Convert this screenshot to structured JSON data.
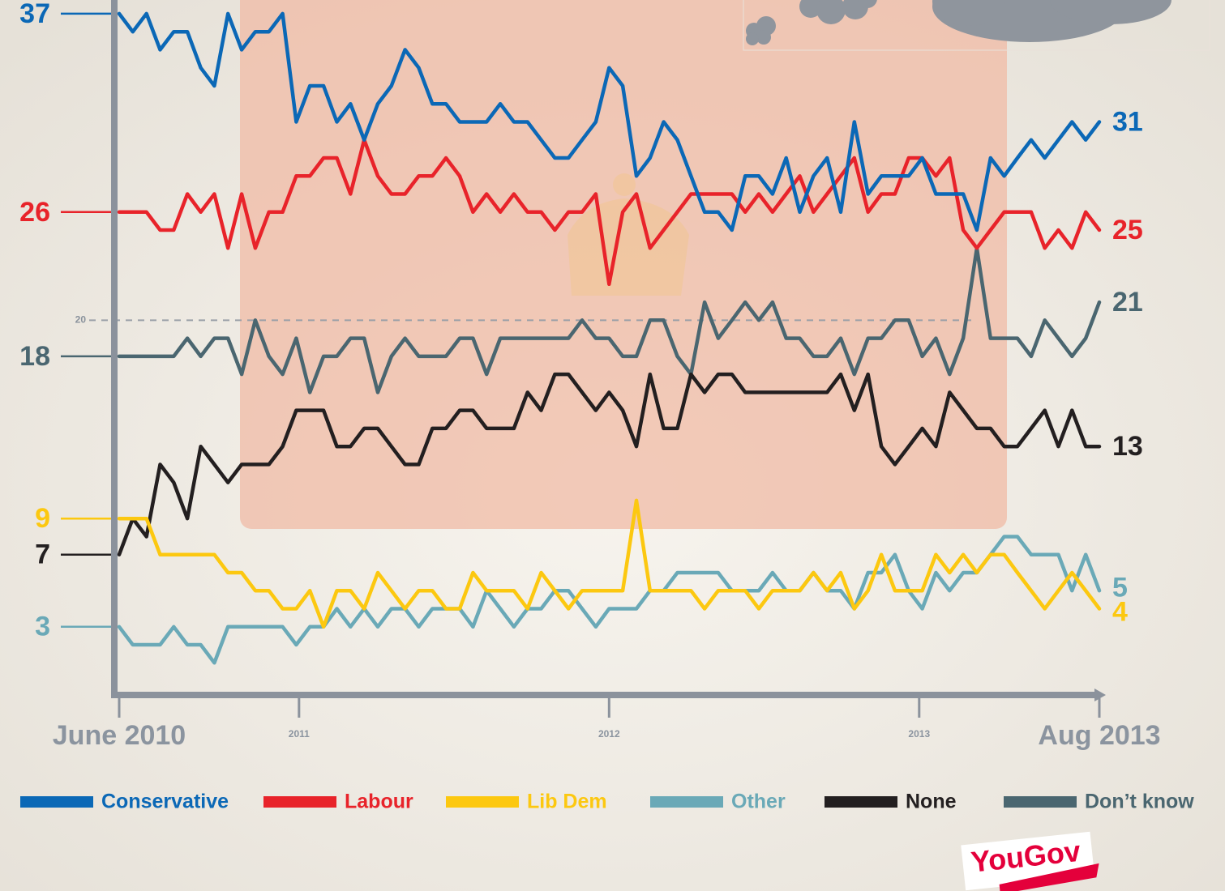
{
  "chart_data": {
    "type": "line",
    "x": [
      2010.42,
      2010.464,
      2010.508,
      2010.552,
      2010.596,
      2010.64,
      2010.683,
      2010.727,
      2010.771,
      2010.815,
      2010.859,
      2010.903,
      2010.947,
      2010.991,
      2011.035,
      2011.079,
      2011.122,
      2011.166,
      2011.21,
      2011.254,
      2011.298,
      2011.342,
      2011.386,
      2011.43,
      2011.474,
      2011.518,
      2011.561,
      2011.605,
      2011.649,
      2011.693,
      2011.737,
      2011.781,
      2011.825,
      2011.869,
      2011.913,
      2011.957,
      2012.0,
      2012.044,
      2012.088,
      2012.132,
      2012.176,
      2012.22,
      2012.264,
      2012.308,
      2012.352,
      2012.396,
      2012.439,
      2012.483,
      2012.527,
      2012.571,
      2012.615,
      2012.659,
      2012.703,
      2012.747,
      2012.791,
      2012.835,
      2012.878,
      2012.922,
      2012.966,
      2013.01,
      2013.054,
      2013.098,
      2013.142,
      2013.186,
      2013.23,
      2013.274,
      2013.317,
      2013.361,
      2013.405,
      2013.449,
      2013.493,
      2013.537,
      2013.581
    ],
    "series": [
      {
        "name": "Conservative",
        "color": "#0b68b6",
        "values": [
          37,
          36,
          37,
          35,
          36,
          36,
          34,
          33,
          37,
          35,
          36,
          36,
          37,
          31,
          33,
          33,
          31,
          32,
          30,
          32,
          33,
          35,
          34,
          32,
          32,
          31,
          31,
          31,
          32,
          31,
          31,
          30,
          29,
          29,
          30,
          31,
          34,
          33,
          28,
          29,
          31,
          30,
          28,
          26,
          26,
          25,
          28,
          28,
          27,
          29,
          26,
          28,
          29,
          26,
          31,
          27,
          28,
          28,
          28,
          29,
          27,
          27,
          27,
          25,
          29,
          28,
          29,
          30,
          29,
          30,
          31,
          30,
          31
        ]
      },
      {
        "name": "Labour",
        "color": "#e8232a",
        "values": [
          26,
          26,
          26,
          25,
          25,
          27,
          26,
          27,
          24,
          27,
          24,
          26,
          26,
          28,
          28,
          29,
          29,
          27,
          30,
          28,
          27,
          27,
          28,
          28,
          29,
          28,
          26,
          27,
          26,
          27,
          26,
          26,
          25,
          26,
          26,
          27,
          22,
          26,
          27,
          24,
          25,
          26,
          27,
          27,
          27,
          27,
          26,
          27,
          26,
          27,
          28,
          26,
          27,
          28,
          29,
          26,
          27,
          27,
          29,
          29,
          28,
          29,
          25,
          24,
          25,
          26,
          26,
          26,
          24,
          25,
          24,
          26,
          25
        ]
      },
      {
        "name": "Lib Dem",
        "color": "#fcc810",
        "values": [
          9,
          9,
          9,
          7,
          7,
          7,
          7,
          7,
          6,
          6,
          5,
          5,
          4,
          4,
          5,
          3,
          5,
          5,
          4,
          6,
          5,
          4,
          5,
          5,
          4,
          4,
          6,
          5,
          5,
          5,
          4,
          6,
          5,
          4,
          5,
          5,
          5,
          5,
          10,
          5,
          5,
          5,
          5,
          4,
          5,
          5,
          5,
          4,
          5,
          5,
          5,
          6,
          5,
          6,
          4,
          5,
          7,
          5,
          5,
          5,
          7,
          6,
          7,
          6,
          7,
          7,
          6,
          5,
          4,
          5,
          6,
          5,
          4
        ]
      },
      {
        "name": "Other",
        "color": "#6aa9b7",
        "values": [
          3,
          2,
          2,
          2,
          3,
          2,
          2,
          1,
          3,
          3,
          3,
          3,
          3,
          2,
          3,
          3,
          4,
          3,
          4,
          3,
          4,
          4,
          3,
          4,
          4,
          4,
          3,
          5,
          4,
          3,
          4,
          4,
          5,
          5,
          4,
          3,
          4,
          4,
          4,
          5,
          5,
          6,
          6,
          6,
          6,
          5,
          5,
          5,
          6,
          5,
          5,
          6,
          5,
          5,
          4,
          6,
          6,
          7,
          5,
          4,
          6,
          5,
          6,
          6,
          7,
          8,
          8,
          7,
          7,
          7,
          5,
          7,
          5
        ]
      },
      {
        "name": "None",
        "color": "#231f20",
        "values": [
          7,
          9,
          8,
          12,
          11,
          9,
          13,
          12,
          11,
          12,
          12,
          12,
          13,
          15,
          15,
          15,
          13,
          13,
          14,
          14,
          13,
          12,
          12,
          14,
          14,
          15,
          15,
          14,
          14,
          14,
          16,
          15,
          17,
          17,
          16,
          15,
          16,
          15,
          13,
          17,
          14,
          14,
          17,
          16,
          17,
          17,
          16,
          16,
          16,
          16,
          16,
          16,
          16,
          17,
          15,
          17,
          13,
          12,
          13,
          14,
          13,
          16,
          15,
          14,
          14,
          13,
          13,
          14,
          15,
          13,
          15,
          13,
          13
        ]
      },
      {
        "name": "Don’t know",
        "color": "#4a6670",
        "values": [
          18,
          18,
          18,
          18,
          18,
          19,
          18,
          19,
          19,
          17,
          20,
          18,
          17,
          19,
          16,
          18,
          18,
          19,
          19,
          16,
          18,
          19,
          18,
          18,
          18,
          19,
          19,
          17,
          19,
          19,
          19,
          19,
          19,
          19,
          20,
          19,
          19,
          18,
          18,
          20,
          20,
          18,
          17,
          21,
          19,
          20,
          21,
          20,
          21,
          19,
          19,
          18,
          18,
          19,
          17,
          19,
          19,
          20,
          20,
          18,
          19,
          17,
          19,
          24,
          19,
          19,
          19,
          18,
          20,
          19,
          18,
          19,
          21
        ]
      }
    ],
    "xlim": [
      2010.42,
      2013.581
    ],
    "xticks": [
      {
        "value": 2010.42,
        "label": "June 2010"
      },
      2011,
      2012,
      2013,
      {
        "value": 2013.581,
        "label": "Aug 2013"
      }
    ],
    "ylim": [
      -0.65,
      37.76
    ],
    "yticks": [
      20
    ],
    "grid": "dashed",
    "legend": "bottom"
  },
  "logo": "YouGov"
}
